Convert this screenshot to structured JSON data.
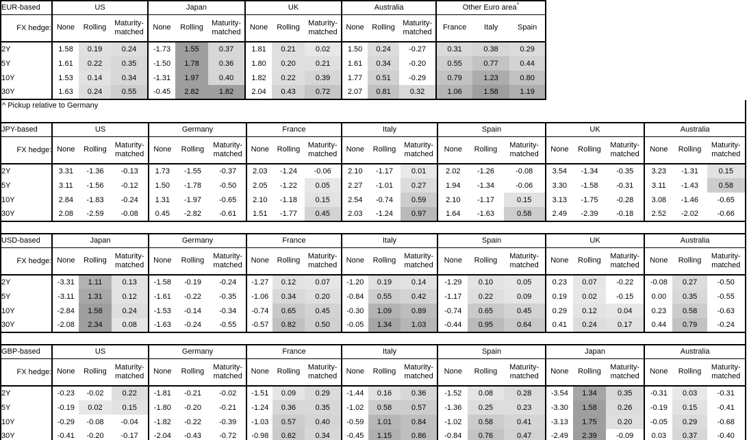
{
  "labels": {
    "fx_hedge": "FX hedge:",
    "hedge_cols": [
      "None",
      "Rolling",
      "Maturity-matched"
    ],
    "tenors": [
      "2Y",
      "5Y",
      "10Y",
      "30Y"
    ],
    "footnote": "^ Pickup relative to Germany",
    "footnote_marker": "^"
  },
  "shading": {
    "rule": "positive values in hedged/spread columns shaded gray, darker = larger value; 'None' columns and non-positive values unshaded",
    "min_color": "#E9E9E9",
    "max_color": "#9B9B9B",
    "border_color": "#000000",
    "background": "#FFFFFF"
  },
  "chart_data": {
    "type": "table",
    "title": "Yield pickup by base currency and FX hedge type",
    "tables": [
      {
        "base_label": "EUR-based",
        "groups": [
          {
            "name": "US",
            "kind": "hedge",
            "rows": [
              [
                "1.58",
                "0.19",
                "0.24"
              ],
              [
                "1.61",
                "0.22",
                "0.35"
              ],
              [
                "1.53",
                "0.14",
                "0.34"
              ],
              [
                "1.63",
                "0.24",
                "0.55"
              ]
            ]
          },
          {
            "name": "Japan",
            "kind": "hedge",
            "rows": [
              [
                "-1.73",
                "1.55",
                "0.37"
              ],
              [
                "-1.50",
                "1.78",
                "0.36"
              ],
              [
                "-1.31",
                "1.97",
                "0.40"
              ],
              [
                "-0.45",
                "2.82",
                "1.82"
              ]
            ]
          },
          {
            "name": "UK",
            "kind": "hedge",
            "rows": [
              [
                "1.81",
                "0.21",
                "0.02"
              ],
              [
                "1.80",
                "0.20",
                "0.21"
              ],
              [
                "1.82",
                "0.22",
                "0.39"
              ],
              [
                "2.04",
                "0.43",
                "0.72"
              ]
            ]
          },
          {
            "name": "Australia",
            "kind": "hedge",
            "rows": [
              [
                "1.50",
                "0.24",
                "-0.27"
              ],
              [
                "1.61",
                "0.34",
                "-0.20"
              ],
              [
                "1.77",
                "0.51",
                "-0.29"
              ],
              [
                "2.07",
                "0.81",
                "0.32"
              ]
            ]
          },
          {
            "name": "Other Euro area",
            "footnote_marker": "^",
            "kind": "countries",
            "cols": [
              "France",
              "Italy",
              "Spain"
            ],
            "rows": [
              [
                "0.31",
                "0.38",
                "0.29"
              ],
              [
                "0.55",
                "0.77",
                "0.44"
              ],
              [
                "0.79",
                "1.23",
                "0.80"
              ],
              [
                "1.06",
                "1.58",
                "1.19"
              ]
            ]
          }
        ]
      },
      {
        "base_label": "JPY-based",
        "groups": [
          {
            "name": "US",
            "kind": "hedge",
            "rows": [
              [
                "3.31",
                "-1.36",
                "-0.13"
              ],
              [
                "3.11",
                "-1.56",
                "-0.12"
              ],
              [
                "2.84",
                "-1.83",
                "-0.24"
              ],
              [
                "2.08",
                "-2.59",
                "-0.08"
              ]
            ]
          },
          {
            "name": "Germany",
            "kind": "hedge",
            "rows": [
              [
                "1.73",
                "-1.55",
                "-0.37"
              ],
              [
                "1.50",
                "-1.78",
                "-0.50"
              ],
              [
                "1.31",
                "-1.97",
                "-0.65"
              ],
              [
                "0.45",
                "-2.82",
                "-0.61"
              ]
            ]
          },
          {
            "name": "France",
            "kind": "hedge",
            "rows": [
              [
                "2.03",
                "-1.24",
                "-0.06"
              ],
              [
                "2.05",
                "-1.22",
                "0.05"
              ],
              [
                "2.10",
                "-1.18",
                "0.15"
              ],
              [
                "1.51",
                "-1.77",
                "0.45"
              ]
            ]
          },
          {
            "name": "Italy",
            "kind": "hedge",
            "rows": [
              [
                "2.10",
                "-1.17",
                "0.01"
              ],
              [
                "2.27",
                "-1.01",
                "0.27"
              ],
              [
                "2.54",
                "-0.74",
                "0.59"
              ],
              [
                "2.03",
                "-1.24",
                "0.97"
              ]
            ]
          },
          {
            "name": "Spain",
            "kind": "hedge",
            "rows": [
              [
                "2.02",
                "-1.26",
                "-0.08"
              ],
              [
                "1.94",
                "-1.34",
                "-0.06"
              ],
              [
                "2.10",
                "-1.17",
                "0.15"
              ],
              [
                "1.64",
                "-1.63",
                "0.58"
              ]
            ]
          },
          {
            "name": "UK",
            "kind": "hedge",
            "rows": [
              [
                "3.54",
                "-1.34",
                "-0.35"
              ],
              [
                "3.30",
                "-1.58",
                "-0.31"
              ],
              [
                "3.13",
                "-1.75",
                "-0.28"
              ],
              [
                "2.49",
                "-2.39",
                "-0.18"
              ]
            ]
          },
          {
            "name": "Australia",
            "kind": "hedge",
            "rows": [
              [
                "3.23",
                "-1.31",
                "0.15"
              ],
              [
                "3.11",
                "-1.43",
                "0.58"
              ],
              [
                "3.08",
                "-1.46",
                "-0.65"
              ],
              [
                "2.52",
                "-2.02",
                "-0.66"
              ]
            ]
          }
        ]
      },
      {
        "base_label": "USD-based",
        "groups": [
          {
            "name": "Japan",
            "kind": "hedge",
            "rows": [
              [
                "-3.31",
                "1.11",
                "0.13"
              ],
              [
                "-3.11",
                "1.31",
                "0.12"
              ],
              [
                "-2.84",
                "1.58",
                "0.24"
              ],
              [
                "-2.08",
                "2.34",
                "0.08"
              ]
            ]
          },
          {
            "name": "Germany",
            "kind": "hedge",
            "rows": [
              [
                "-1.58",
                "-0.19",
                "-0.24"
              ],
              [
                "-1.61",
                "-0.22",
                "-0.35"
              ],
              [
                "-1.53",
                "-0.14",
                "-0.34"
              ],
              [
                "-1.63",
                "-0.24",
                "-0.55"
              ]
            ]
          },
          {
            "name": "France",
            "kind": "hedge",
            "rows": [
              [
                "-1.27",
                "0.12",
                "0.07"
              ],
              [
                "-1.06",
                "0.34",
                "0.20"
              ],
              [
                "-0.74",
                "0.65",
                "0.45"
              ],
              [
                "-0.57",
                "0.82",
                "0.50"
              ]
            ]
          },
          {
            "name": "Italy",
            "kind": "hedge",
            "rows": [
              [
                "-1.20",
                "0.19",
                "0.14"
              ],
              [
                "-0.84",
                "0.55",
                "0.42"
              ],
              [
                "-0.30",
                "1.09",
                "0.89"
              ],
              [
                "-0.05",
                "1.34",
                "1.03"
              ]
            ]
          },
          {
            "name": "Spain",
            "kind": "hedge",
            "rows": [
              [
                "-1.29",
                "0.10",
                "0.05"
              ],
              [
                "-1.17",
                "0.22",
                "0.09"
              ],
              [
                "-0.74",
                "0.65",
                "0.45"
              ],
              [
                "-0.44",
                "0.95",
                "0.64"
              ]
            ]
          },
          {
            "name": "UK",
            "kind": "hedge",
            "rows": [
              [
                "0.23",
                "0.07",
                "-0.22"
              ],
              [
                "0.19",
                "0.02",
                "-0.15"
              ],
              [
                "0.29",
                "0.12",
                "0.04"
              ],
              [
                "0.41",
                "0.24",
                "0.17"
              ]
            ]
          },
          {
            "name": "Australia",
            "kind": "hedge",
            "rows": [
              [
                "-0.08",
                "0.27",
                "-0.50"
              ],
              [
                "0.00",
                "0.35",
                "-0.55"
              ],
              [
                "0.23",
                "0.58",
                "-0.63"
              ],
              [
                "0.44",
                "0.79",
                "-0.24"
              ]
            ]
          }
        ]
      },
      {
        "base_label": "GBP-based",
        "groups": [
          {
            "name": "US",
            "kind": "hedge",
            "rows": [
              [
                "-0.23",
                "-0.02",
                "0.22"
              ],
              [
                "-0.19",
                "0.02",
                "0.15"
              ],
              [
                "-0.29",
                "-0.08",
                "-0.04"
              ],
              [
                "-0.41",
                "-0.20",
                "-0.17"
              ]
            ]
          },
          {
            "name": "Germany",
            "kind": "hedge",
            "rows": [
              [
                "-1.81",
                "-0.21",
                "-0.02"
              ],
              [
                "-1.80",
                "-0.20",
                "-0.21"
              ],
              [
                "-1.82",
                "-0.22",
                "-0.39"
              ],
              [
                "-2.04",
                "-0.43",
                "-0.72"
              ]
            ]
          },
          {
            "name": "France",
            "kind": "hedge",
            "rows": [
              [
                "-1.51",
                "0.09",
                "0.29"
              ],
              [
                "-1.24",
                "0.36",
                "0.35"
              ],
              [
                "-1.03",
                "0.57",
                "0.40"
              ],
              [
                "-0.98",
                "0.62",
                "0.34"
              ]
            ]
          },
          {
            "name": "Italy",
            "kind": "hedge",
            "rows": [
              [
                "-1.44",
                "0.16",
                "0.36"
              ],
              [
                "-1.02",
                "0.58",
                "0.57"
              ],
              [
                "-0.59",
                "1.01",
                "0.84"
              ],
              [
                "-0.45",
                "1.15",
                "0.86"
              ]
            ]
          },
          {
            "name": "Spain",
            "kind": "hedge",
            "rows": [
              [
                "-1.52",
                "0.08",
                "0.28"
              ],
              [
                "-1.36",
                "0.25",
                "0.23"
              ],
              [
                "-1.02",
                "0.58",
                "0.41"
              ],
              [
                "-0.84",
                "0.76",
                "0.47"
              ]
            ]
          },
          {
            "name": "Japan",
            "kind": "hedge",
            "rows": [
              [
                "-3.54",
                "1.34",
                "0.35"
              ],
              [
                "-3.30",
                "1.58",
                "0.26"
              ],
              [
                "-3.13",
                "1.75",
                "0.20"
              ],
              [
                "-2.49",
                "2.39",
                "-0.09"
              ]
            ]
          },
          {
            "name": "Australia",
            "kind": "hedge",
            "rows": [
              [
                "-0.31",
                "0.03",
                "-0.31"
              ],
              [
                "-0.19",
                "0.15",
                "-0.41"
              ],
              [
                "-0.05",
                "0.29",
                "-0.68"
              ],
              [
                "0.03",
                "0.37",
                "-0.40"
              ]
            ]
          }
        ]
      }
    ]
  }
}
